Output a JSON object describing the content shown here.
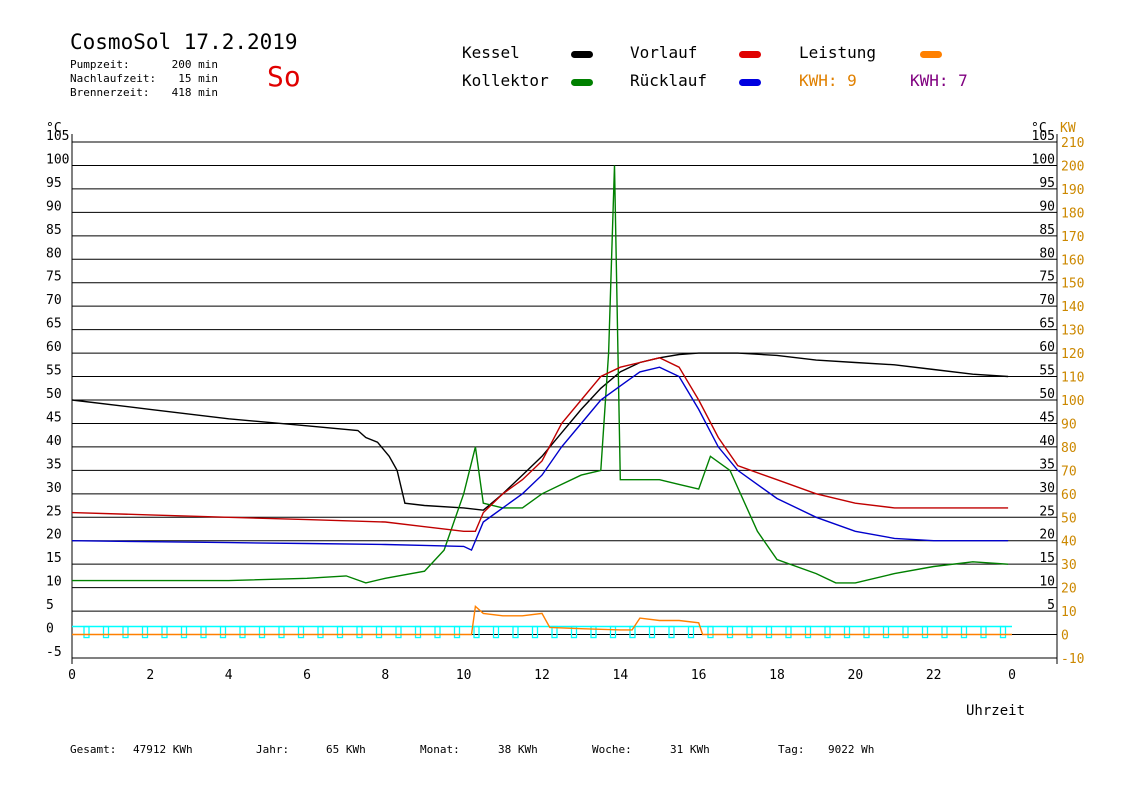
{
  "header": {
    "title": "CosmoSol 17.2.2019",
    "day": "So",
    "stats": [
      {
        "label": "Pumpzeit:",
        "value": "200 min"
      },
      {
        "label": "Nachlaufzeit:",
        "value": "15 min"
      },
      {
        "label": "Brennerzeit:",
        "value": "418 min"
      }
    ]
  },
  "legend": {
    "kessel": "Kessel",
    "kollektor": "Kollektor",
    "vorlauf": "Vorlauf",
    "ruecklauf": "Rücklauf",
    "leistung": "Leistung",
    "kwh_orange": "KWH: 9",
    "kwh_purple": "KWH: 7"
  },
  "axes": {
    "left_unit": "°C",
    "right_unit": "°C",
    "kw_unit": "KW",
    "xlabel": "Uhrzeit"
  },
  "footer": [
    {
      "label": "Gesamt:",
      "value": "47912 KWh"
    },
    {
      "label": "Jahr:",
      "value": "65 KWh"
    },
    {
      "label": "Monat:",
      "value": "38 KWh"
    },
    {
      "label": "Woche:",
      "value": "31 KWh"
    },
    {
      "label": "Tag:",
      "value": "9022 Wh"
    }
  ],
  "colors": {
    "kessel": "#000000",
    "kollektor": "#008000",
    "vorlauf": "#c00000",
    "ruecklauf": "#0000cc",
    "leistung": "#ff8000",
    "kwh_purple": "#800080",
    "pump": "#00ffff",
    "kw_axis": "#cc8800"
  },
  "chart_data": {
    "type": "line",
    "xlabel": "Uhrzeit",
    "ylabel": "°C",
    "y2label": "KW",
    "xlim": [
      0,
      24
    ],
    "ylim": [
      -5,
      105
    ],
    "y2lim": [
      -10,
      210
    ],
    "x_ticks": [
      "0",
      "2",
      "4",
      "6",
      "8",
      "10",
      "12",
      "14",
      "16",
      "18",
      "20",
      "22",
      "0"
    ],
    "y_ticks": [
      "-5",
      "0",
      "5",
      "10",
      "15",
      "20",
      "25",
      "30",
      "35",
      "40",
      "45",
      "50",
      "55",
      "60",
      "65",
      "70",
      "75",
      "80",
      "85",
      "90",
      "95",
      "100",
      "105"
    ],
    "y_ticks_right": [
      "5",
      "10",
      "15",
      "20",
      "25",
      "30",
      "35",
      "40",
      "45",
      "50",
      "55",
      "60",
      "65",
      "70",
      "75",
      "80",
      "85",
      "90",
      "95",
      "100",
      "105"
    ],
    "y2_ticks": [
      "-10",
      "0",
      "10",
      "20",
      "30",
      "40",
      "50",
      "60",
      "70",
      "80",
      "90",
      "100",
      "110",
      "120",
      "130",
      "140",
      "150",
      "160",
      "170",
      "180",
      "190",
      "200",
      "210"
    ],
    "grid": true,
    "series": [
      {
        "name": "Kessel",
        "color": "#000000",
        "x": [
          0,
          2,
          4,
          6,
          7.3,
          7.5,
          7.8,
          8.1,
          8.3,
          8.5,
          9,
          10,
          10.5,
          11,
          11.5,
          12,
          12.5,
          13,
          13.5,
          14,
          14.5,
          15,
          15.5,
          16,
          17,
          18,
          19,
          20,
          21,
          22,
          23,
          23.9
        ],
        "y": [
          50,
          48,
          46,
          44.5,
          43.5,
          42,
          41,
          38,
          35,
          28,
          27.5,
          27,
          26.5,
          30,
          34,
          38,
          43,
          48,
          52.5,
          56,
          58,
          59,
          59.7,
          60,
          60,
          59.5,
          58.5,
          58,
          57.5,
          56.5,
          55.5,
          55
        ]
      },
      {
        "name": "Kollektor",
        "color": "#008000",
        "x": [
          0,
          2,
          4,
          6,
          7,
          7.5,
          8,
          9,
          9.5,
          10,
          10.3,
          10.5,
          11,
          11.5,
          12,
          12.5,
          13,
          13.5,
          13.7,
          13.85,
          14,
          14.5,
          15,
          15.5,
          16,
          16.3,
          16.8,
          17.5,
          18,
          19,
          19.5,
          20,
          21,
          22,
          23,
          23.9
        ],
        "y": [
          11.5,
          11.5,
          11.5,
          12,
          12.5,
          11,
          12,
          13.5,
          18,
          30,
          40,
          28,
          27,
          27,
          30,
          32,
          34,
          35,
          60,
          100,
          33,
          33,
          33,
          32,
          31,
          38,
          35,
          22,
          16,
          13,
          11,
          11,
          13,
          14.5,
          15.5,
          15
        ]
      },
      {
        "name": "Vorlauf",
        "color": "#c00000",
        "x": [
          0,
          2,
          4,
          6,
          8,
          9,
          10,
          10.3,
          10.5,
          11,
          11.5,
          12,
          12.5,
          13,
          13.5,
          14,
          14.5,
          15,
          15.5,
          16,
          16.5,
          17,
          18,
          19,
          20,
          21,
          22,
          23,
          23.9
        ],
        "y": [
          26,
          25.5,
          25,
          24.5,
          24,
          23,
          22,
          22,
          26,
          30,
          33,
          37,
          45,
          50,
          55,
          57,
          58,
          59,
          57,
          50,
          42,
          36,
          33,
          30,
          28,
          27,
          27,
          27,
          27
        ]
      },
      {
        "name": "Rücklauf",
        "color": "#0000cc",
        "x": [
          0,
          2,
          4,
          6,
          8,
          9,
          10,
          10.2,
          10.5,
          11,
          11.5,
          12,
          12.5,
          13,
          13.5,
          14,
          14.5,
          15,
          15.5,
          16,
          16.5,
          17,
          18,
          19,
          20,
          21,
          22,
          23,
          23.9
        ],
        "y": [
          20,
          19.8,
          19.6,
          19.4,
          19.2,
          19,
          18.8,
          18,
          24,
          27,
          30,
          34,
          40,
          45,
          50,
          53,
          56,
          57,
          55,
          48,
          40,
          35,
          29,
          25,
          22,
          20.5,
          20,
          20,
          20
        ]
      },
      {
        "name": "Leistung",
        "color": "#ff8000",
        "x": [
          0,
          10.2,
          10.3,
          10.5,
          11,
          11.5,
          12,
          12.2,
          13,
          14,
          14.3,
          14.5,
          15,
          15.5,
          16,
          16.1,
          24
        ],
        "y": [
          0,
          0,
          12,
          9,
          8,
          8,
          9,
          3,
          2.5,
          2,
          2,
          7,
          6,
          6,
          5,
          0,
          0
        ]
      }
    ]
  }
}
